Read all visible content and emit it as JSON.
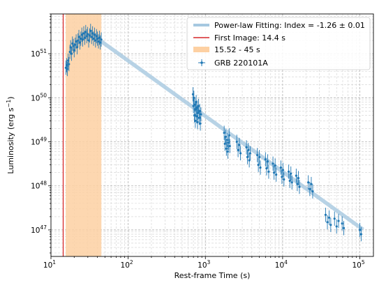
{
  "chart_data": {
    "type": "scatter",
    "xlabel": "Rest-frame Time (s)",
    "ylabel": "Luminosity (erg s",
    "ylabel_sup": "−1",
    "ylabel_close": ")",
    "x_scale": "log",
    "y_scale": "log",
    "xlim": [
      10,
      150000
    ],
    "ylim": [
      2.5e+46,
      8e+51
    ],
    "grid": "on (major and minor, dashed)",
    "legend_placement": "top-right",
    "x_tick_labels": [
      {
        "value": 10,
        "mantissa": "10",
        "exp": "1"
      },
      {
        "value": 100,
        "mantissa": "10",
        "exp": "2"
      },
      {
        "value": 1000,
        "mantissa": "10",
        "exp": "3"
      },
      {
        "value": 10000,
        "mantissa": "10",
        "exp": "4"
      },
      {
        "value": 100000,
        "mantissa": "10",
        "exp": "5"
      }
    ],
    "y_tick_labels": [
      {
        "value": 1e+47,
        "mantissa": "10",
        "exp": "47"
      },
      {
        "value": 1e+48,
        "mantissa": "10",
        "exp": "48"
      },
      {
        "value": 1e+49,
        "mantissa": "10",
        "exp": "49"
      },
      {
        "value": 1e+50,
        "mantissa": "10",
        "exp": "50"
      },
      {
        "value": 1e+51,
        "mantissa": "10",
        "exp": "51"
      }
    ],
    "legend": [
      {
        "label": "Power-law Fitting: Index = -1.26 ± 0.01",
        "kind": "thick-line",
        "color": "#a6c8e0"
      },
      {
        "label": "First Image: 14.4 s",
        "kind": "line",
        "color": "#d62728"
      },
      {
        "label": "15.52 - 45 s",
        "kind": "patch",
        "color": "#fdd0a2"
      },
      {
        "label": "GRB 220101A",
        "kind": "errorbar-marker",
        "color": "#1f77b4"
      }
    ],
    "vertical_line": {
      "x": 14.4,
      "color": "#d62728"
    },
    "shaded_span": {
      "x_start": 15.52,
      "x_end": 45,
      "color": "#fdd0a2"
    },
    "power_law_fit": {
      "index": -1.26,
      "index_err": 0.01,
      "x_start": 45,
      "x_end": 110000,
      "y_at_start": 1.9e+51,
      "color": "#a6c8e0"
    },
    "series": [
      {
        "name": "GRB 220101A",
        "color": "#1f77b4",
        "points": [
          {
            "x": 15.6,
            "y": 4.8e+50
          },
          {
            "x": 16.0,
            "y": 5.5e+50
          },
          {
            "x": 16.3,
            "y": 4.5e+50
          },
          {
            "x": 16.7,
            "y": 7e+50
          },
          {
            "x": 17.1,
            "y": 5.8e+50
          },
          {
            "x": 17.6,
            "y": 1.1e+51
          },
          {
            "x": 18.0,
            "y": 1.4e+51
          },
          {
            "x": 18.5,
            "y": 1e+51
          },
          {
            "x": 19.0,
            "y": 1.7e+51
          },
          {
            "x": 19.5,
            "y": 1.5e+51
          },
          {
            "x": 20.0,
            "y": 1.2e+51
          },
          {
            "x": 20.6,
            "y": 1.6e+51
          },
          {
            "x": 21.2,
            "y": 1.9e+51
          },
          {
            "x": 21.8,
            "y": 1.4e+51
          },
          {
            "x": 22.4,
            "y": 2e+51
          },
          {
            "x": 23.0,
            "y": 2.4e+51
          },
          {
            "x": 23.7,
            "y": 1.8e+51
          },
          {
            "x": 24.4,
            "y": 2.2e+51
          },
          {
            "x": 25.1,
            "y": 2.7e+51
          },
          {
            "x": 25.8,
            "y": 2.1e+51
          },
          {
            "x": 26.6,
            "y": 2.9e+51
          },
          {
            "x": 27.4,
            "y": 2.3e+51
          },
          {
            "x": 28.2,
            "y": 3.1e+51
          },
          {
            "x": 29.0,
            "y": 2.5e+51
          },
          {
            "x": 29.9,
            "y": 2.8e+51
          },
          {
            "x": 30.8,
            "y": 2e+51
          },
          {
            "x": 31.7,
            "y": 2.6e+51
          },
          {
            "x": 32.6,
            "y": 3.3e+51
          },
          {
            "x": 33.6,
            "y": 2.4e+51
          },
          {
            "x": 34.6,
            "y": 2.9e+51
          },
          {
            "x": 35.6,
            "y": 2.2e+51
          },
          {
            "x": 36.7,
            "y": 2.7e+51
          },
          {
            "x": 37.8,
            "y": 2e+51
          },
          {
            "x": 38.9,
            "y": 2.5e+51
          },
          {
            "x": 40.0,
            "y": 2.2e+51
          },
          {
            "x": 41.2,
            "y": 1.9e+51
          },
          {
            "x": 42.4,
            "y": 2.3e+51
          },
          {
            "x": 43.6,
            "y": 1.8e+51
          },
          {
            "x": 44.8,
            "y": 2.1e+51
          },
          {
            "x": 690,
            "y": 1.2e+50
          },
          {
            "x": 700,
            "y": 6.5e+49
          },
          {
            "x": 710,
            "y": 1e+50
          },
          {
            "x": 720,
            "y": 4e+49
          },
          {
            "x": 730,
            "y": 7e+49
          },
          {
            "x": 740,
            "y": 3e+49
          },
          {
            "x": 750,
            "y": 5.5e+49
          },
          {
            "x": 760,
            "y": 8e+49
          },
          {
            "x": 770,
            "y": 3.8e+49
          },
          {
            "x": 780,
            "y": 6e+49
          },
          {
            "x": 790,
            "y": 2.8e+49
          },
          {
            "x": 800,
            "y": 4.5e+49
          },
          {
            "x": 815,
            "y": 6.5e+49
          },
          {
            "x": 830,
            "y": 3.5e+49
          },
          {
            "x": 845,
            "y": 5e+49
          },
          {
            "x": 860,
            "y": 2.6e+49
          },
          {
            "x": 875,
            "y": 4.2e+49
          },
          {
            "x": 1750,
            "y": 1.6e+49
          },
          {
            "x": 1790,
            "y": 9e+48
          },
          {
            "x": 1830,
            "y": 1.3e+49
          },
          {
            "x": 1870,
            "y": 7e+48
          },
          {
            "x": 1910,
            "y": 1.1e+49
          },
          {
            "x": 1950,
            "y": 6e+48
          },
          {
            "x": 1990,
            "y": 9.5e+48
          },
          {
            "x": 2030,
            "y": 1.4e+49
          },
          {
            "x": 2070,
            "y": 8e+48
          },
          {
            "x": 2550,
            "y": 1e+49
          },
          {
            "x": 2650,
            "y": 6.5e+48
          },
          {
            "x": 2750,
            "y": 8.5e+48
          },
          {
            "x": 2850,
            "y": 5.5e+48
          },
          {
            "x": 3400,
            "y": 7.5e+48
          },
          {
            "x": 3500,
            "y": 4.5e+48
          },
          {
            "x": 3600,
            "y": 6.5e+48
          },
          {
            "x": 3700,
            "y": 3.8e+48
          },
          {
            "x": 3800,
            "y": 5.5e+48
          },
          {
            "x": 4700,
            "y": 5e+48
          },
          {
            "x": 4850,
            "y": 3e+48
          },
          {
            "x": 5000,
            "y": 4.5e+48
          },
          {
            "x": 5150,
            "y": 2.6e+48
          },
          {
            "x": 6000,
            "y": 4e+48
          },
          {
            "x": 6200,
            "y": 2.5e+48
          },
          {
            "x": 6400,
            "y": 3.6e+48
          },
          {
            "x": 6600,
            "y": 2.1e+48
          },
          {
            "x": 7500,
            "y": 3.2e+48
          },
          {
            "x": 7750,
            "y": 2e+48
          },
          {
            "x": 8000,
            "y": 2.9e+48
          },
          {
            "x": 8250,
            "y": 1.8e+48
          },
          {
            "x": 9500,
            "y": 2.6e+48
          },
          {
            "x": 9800,
            "y": 1.6e+48
          },
          {
            "x": 10100,
            "y": 2.3e+48
          },
          {
            "x": 10400,
            "y": 1.4e+48
          },
          {
            "x": 12000,
            "y": 2.1e+48
          },
          {
            "x": 12400,
            "y": 1.3e+48
          },
          {
            "x": 12800,
            "y": 1.9e+48
          },
          {
            "x": 13200,
            "y": 1.2e+48
          },
          {
            "x": 15000,
            "y": 1.7e+48
          },
          {
            "x": 15500,
            "y": 1.1e+48
          },
          {
            "x": 16000,
            "y": 1.5e+48
          },
          {
            "x": 16500,
            "y": 9.5e+47
          },
          {
            "x": 21500,
            "y": 1.2e+48
          },
          {
            "x": 22500,
            "y": 8.5e+47
          },
          {
            "x": 23500,
            "y": 1.1e+48
          },
          {
            "x": 24500,
            "y": 7.5e+47
          },
          {
            "x": 36000,
            "y": 2.2e+47
          },
          {
            "x": 38000,
            "y": 1.5e+47
          },
          {
            "x": 40000,
            "y": 1.9e+47
          },
          {
            "x": 42000,
            "y": 1.3e+47
          },
          {
            "x": 47000,
            "y": 1.8e+47
          },
          {
            "x": 50000,
            "y": 1.2e+47
          },
          {
            "x": 53000,
            "y": 1.6e+47
          },
          {
            "x": 59000,
            "y": 1.4e+47
          },
          {
            "x": 62000,
            "y": 1.1e+47
          },
          {
            "x": 100000,
            "y": 1e+47
          },
          {
            "x": 104000,
            "y": 8e+46
          }
        ]
      }
    ]
  }
}
